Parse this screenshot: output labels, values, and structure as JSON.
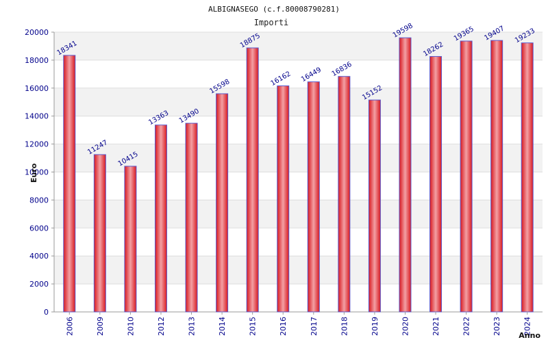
{
  "chart_data": {
    "type": "bar",
    "title": "ALBIGNASEGO (c.f.80008790281)",
    "subtitle": "Importi",
    "xlabel": "Anno",
    "ylabel": "Euro",
    "ylim": [
      0,
      20000
    ],
    "yticks": [
      0,
      2000,
      4000,
      6000,
      8000,
      10000,
      12000,
      14000,
      16000,
      18000,
      20000
    ],
    "categories": [
      "2006",
      "2009",
      "2010",
      "2012",
      "2013",
      "2014",
      "2015",
      "2016",
      "2017",
      "2018",
      "2019",
      "2020",
      "2021",
      "2022",
      "2023",
      "2024"
    ],
    "values": [
      18341,
      11247,
      10415,
      13363,
      13490,
      15598,
      18875,
      16162,
      16449,
      16836,
      15152,
      19598,
      18262,
      19365,
      19407,
      19233
    ],
    "grid": true,
    "legend": "none",
    "colors": {
      "bar": "#e8202a",
      "bar_highlight": "#f3a0a4",
      "bar_border": "#5a5acd",
      "band": "#f2f2f2",
      "grid": "#dddddd",
      "tick_text": "#00008b"
    }
  }
}
